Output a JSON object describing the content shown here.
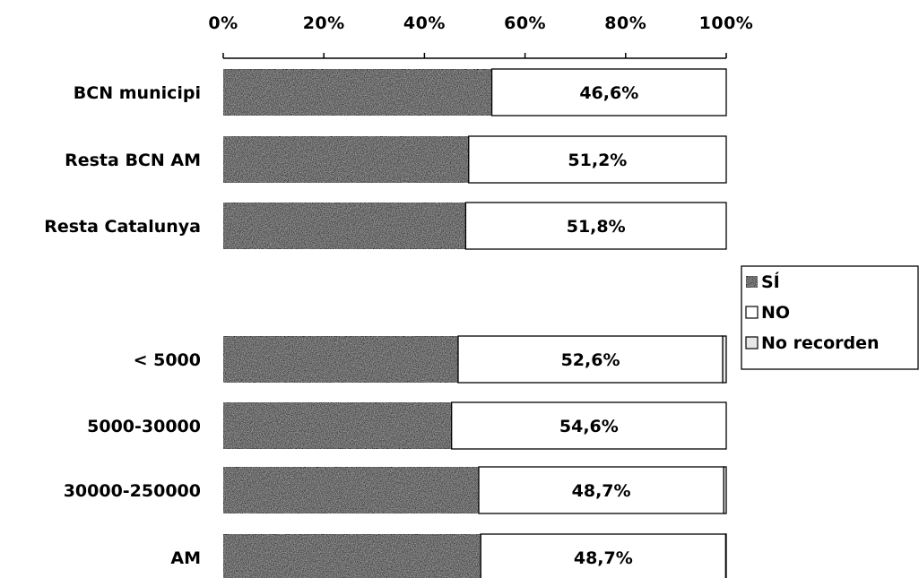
{
  "chart_data": {
    "type": "bar",
    "orientation": "horizontal",
    "stacked": "percent",
    "x_ticks": [
      "0%",
      "20%",
      "40%",
      "60%",
      "80%",
      "100%"
    ],
    "xlim": [
      0,
      100
    ],
    "x_axis_position": "top",
    "categories": [
      "BCN municipi",
      "Resta BCN AM",
      "Resta Catalunya",
      "",
      "< 5000",
      "5000-30000",
      "30000-250000",
      "AM"
    ],
    "series": [
      {
        "name": "SÍ",
        "values": [
          53.4,
          48.8,
          48.2,
          null,
          46.7,
          45.4,
          50.8,
          51.2
        ],
        "color": "#3a3a3a",
        "labels": [
          "",
          "",
          "",
          "",
          "",
          "",
          "",
          ""
        ]
      },
      {
        "name": "NO",
        "values": [
          46.6,
          51.2,
          51.8,
          null,
          52.6,
          54.6,
          48.7,
          48.7
        ],
        "color": "#ffffff",
        "labels": [
          "46,6%",
          "51,2%",
          "51,8%",
          "",
          "52,6%",
          "54,6%",
          "48,7%",
          "48,7%"
        ]
      },
      {
        "name": "No recorden",
        "values": [
          0.0,
          0.0,
          0.0,
          null,
          0.7,
          0.0,
          0.5,
          0.1
        ],
        "color": "#e8e8e8",
        "labels": [
          "",
          "",
          "",
          "",
          "",
          "",
          "",
          ""
        ]
      }
    ],
    "legend_position": "right",
    "grid": false
  }
}
